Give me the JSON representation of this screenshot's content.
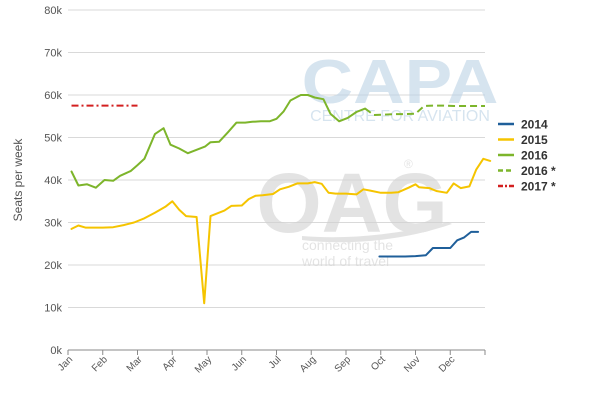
{
  "chart_data": {
    "type": "line",
    "ylabel": "Seats per week",
    "ylim": [
      0,
      80000
    ],
    "yticks": [
      0,
      10000,
      20000,
      30000,
      40000,
      50000,
      60000,
      70000,
      80000
    ],
    "ytick_labels": [
      "0k",
      "10k",
      "20k",
      "30k",
      "40k",
      "50k",
      "60k",
      "70k",
      "80k"
    ],
    "xlim": [
      0,
      12
    ],
    "month_labels": [
      "Jan",
      "Feb",
      "Mar",
      "Apr",
      "May",
      "Jun",
      "Jul",
      "Aug",
      "Sep",
      "Oct",
      "Nov",
      "Dec"
    ],
    "grid": "horizontal",
    "legend_position": "right",
    "series": [
      {
        "name": "2014",
        "color": "#1f5f9a",
        "style": "solid",
        "points": [
          [
            8.96,
            22000
          ],
          [
            9.3,
            22000
          ],
          [
            9.7,
            22000
          ],
          [
            10.0,
            22100
          ],
          [
            10.3,
            22300
          ],
          [
            10.5,
            24000
          ],
          [
            10.7,
            24000
          ],
          [
            11.0,
            24000
          ],
          [
            11.2,
            25800
          ],
          [
            11.4,
            26500
          ],
          [
            11.6,
            27800
          ],
          [
            11.8,
            27800
          ]
        ]
      },
      {
        "name": "2015",
        "color": "#f5c400",
        "style": "solid",
        "points": [
          [
            0.1,
            28500
          ],
          [
            0.3,
            29300
          ],
          [
            0.5,
            28800
          ],
          [
            0.7,
            28800
          ],
          [
            1.0,
            28800
          ],
          [
            1.3,
            28900
          ],
          [
            1.6,
            29400
          ],
          [
            1.9,
            30000
          ],
          [
            2.2,
            31000
          ],
          [
            2.5,
            32300
          ],
          [
            2.8,
            33700
          ],
          [
            3.0,
            35000
          ],
          [
            3.2,
            33000
          ],
          [
            3.4,
            31500
          ],
          [
            3.7,
            31300
          ],
          [
            3.92,
            11000
          ],
          [
            4.1,
            31500
          ],
          [
            4.5,
            32800
          ],
          [
            4.7,
            33900
          ],
          [
            5.0,
            34000
          ],
          [
            5.2,
            35500
          ],
          [
            5.4,
            36300
          ],
          [
            5.6,
            36400
          ],
          [
            5.9,
            36700
          ],
          [
            6.1,
            37800
          ],
          [
            6.35,
            38400
          ],
          [
            6.6,
            39200
          ],
          [
            6.9,
            39200
          ],
          [
            7.1,
            39500
          ],
          [
            7.3,
            39100
          ],
          [
            7.5,
            37000
          ],
          [
            7.7,
            36800
          ],
          [
            8.0,
            36800
          ],
          [
            8.3,
            36600
          ],
          [
            8.5,
            37800
          ],
          [
            8.7,
            37500
          ],
          [
            9.0,
            37000
          ],
          [
            9.3,
            37000
          ],
          [
            9.5,
            37100
          ],
          [
            9.8,
            38200
          ],
          [
            10.0,
            39000
          ],
          [
            10.1,
            38300
          ],
          [
            10.4,
            38100
          ],
          [
            10.6,
            37400
          ],
          [
            10.9,
            37000
          ],
          [
            11.1,
            39200
          ],
          [
            11.3,
            38100
          ],
          [
            11.55,
            38500
          ],
          [
            11.75,
            42500
          ],
          [
            11.95,
            45000
          ],
          [
            12.15,
            44500
          ]
        ]
      },
      {
        "name": "2016",
        "color": "#7db52b",
        "style": "solid",
        "points": [
          [
            0.1,
            42000
          ],
          [
            0.3,
            38700
          ],
          [
            0.55,
            39000
          ],
          [
            0.8,
            38200
          ],
          [
            1.05,
            40000
          ],
          [
            1.3,
            39800
          ],
          [
            1.5,
            41000
          ],
          [
            1.8,
            42100
          ],
          [
            2.0,
            43500
          ],
          [
            2.2,
            45000
          ],
          [
            2.5,
            50800
          ],
          [
            2.75,
            52200
          ],
          [
            2.95,
            48300
          ],
          [
            3.2,
            47400
          ],
          [
            3.45,
            46300
          ],
          [
            3.7,
            47100
          ],
          [
            3.95,
            47900
          ],
          [
            4.1,
            48900
          ],
          [
            4.35,
            49000
          ],
          [
            4.6,
            51200
          ],
          [
            4.85,
            53500
          ],
          [
            5.1,
            53500
          ],
          [
            5.3,
            53700
          ],
          [
            5.55,
            53800
          ],
          [
            5.8,
            53800
          ],
          [
            6.0,
            54400
          ],
          [
            6.2,
            56100
          ],
          [
            6.4,
            58700
          ],
          [
            6.7,
            60000
          ],
          [
            6.9,
            60000
          ],
          [
            7.1,
            59400
          ],
          [
            7.35,
            59000
          ],
          [
            7.55,
            55600
          ],
          [
            7.8,
            53800
          ],
          [
            8.05,
            54600
          ],
          [
            8.3,
            56000
          ],
          [
            8.55,
            56800
          ]
        ]
      },
      {
        "name": "2016 *",
        "color": "#7db52b",
        "style": "dashed",
        "points": [
          [
            8.55,
            56800
          ],
          [
            8.8,
            55300
          ],
          [
            9.1,
            55400
          ],
          [
            9.4,
            55500
          ],
          [
            9.7,
            55500
          ],
          [
            10.0,
            55600
          ],
          [
            10.25,
            57400
          ],
          [
            10.5,
            57500
          ],
          [
            10.8,
            57500
          ],
          [
            11.1,
            57400
          ],
          [
            11.4,
            57400
          ],
          [
            11.7,
            57400
          ],
          [
            12.0,
            57400
          ]
        ]
      },
      {
        "name": "2017 *",
        "color": "#d32020",
        "style": "dashed",
        "points": [
          [
            0.1,
            57500
          ],
          [
            0.5,
            57500
          ],
          [
            1.0,
            57500
          ],
          [
            1.5,
            57500
          ],
          [
            2.0,
            57500
          ]
        ]
      }
    ]
  },
  "watermarks": {
    "capa_big": "CAPA",
    "capa_small": "CENTRE FOR AVIATION",
    "oag_big": "OAG",
    "oag_small_1": "connecting the",
    "oag_small_2": "world of travel",
    "reg_mark": "®"
  }
}
